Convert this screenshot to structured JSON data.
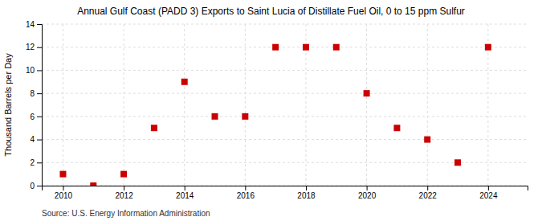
{
  "chart_data": {
    "type": "scatter",
    "title": "Annual Gulf Coast (PADD 3) Exports to Saint Lucia of Distillate Fuel Oil, 0 to 15 ppm Sulfur",
    "y_label": "Thousand Barrels per Day",
    "source": "Source: U.S. Energy Information Administration",
    "x": [
      2010,
      2011,
      2012,
      2013,
      2014,
      2015,
      2016,
      2017,
      2018,
      2019,
      2020,
      2021,
      2022,
      2023,
      2024
    ],
    "y": [
      1,
      0,
      1,
      5,
      9,
      6,
      6,
      12,
      12,
      12,
      8,
      5,
      4,
      2,
      12
    ],
    "color": "#cc0000",
    "marker": "square",
    "xlim": [
      2009.3,
      2025.3
    ],
    "ylim": [
      0,
      14
    ],
    "xticks": [
      2010,
      2012,
      2014,
      2016,
      2018,
      2020,
      2022,
      2024
    ],
    "yticks": [
      0,
      2,
      4,
      6,
      8,
      10,
      12,
      14
    ],
    "grid": true
  }
}
